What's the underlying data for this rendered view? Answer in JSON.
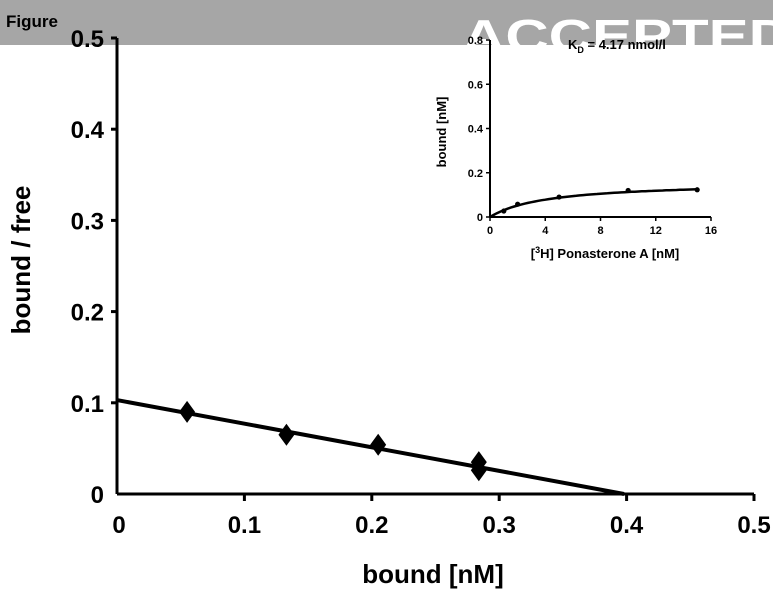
{
  "header": {
    "figure_label": "Figure",
    "watermark": "ACCEPTED",
    "band_color": "#a6a6a6"
  },
  "chart_data": [
    {
      "type": "scatter",
      "xlabel": "bound [nM]",
      "ylabel": "bound / free",
      "xlim": [
        0,
        0.5
      ],
      "ylim": [
        0,
        0.5
      ],
      "x_ticks": [
        "0",
        "0.1",
        "0.2",
        "0.3",
        "0.4",
        "0.5"
      ],
      "y_ticks": [
        "0",
        "0.1",
        "0.2",
        "0.3",
        "0.4",
        "0.5"
      ],
      "grid": false,
      "marker": "diamond",
      "series": [
        {
          "x": [
            0.055,
            0.133,
            0.205,
            0.284,
            0.284
          ],
          "y": [
            0.09,
            0.065,
            0.054,
            0.035,
            0.026
          ]
        }
      ],
      "fit_line": {
        "x": [
          0,
          0.398
        ],
        "y": [
          0.103,
          0
        ]
      }
    },
    {
      "type": "line",
      "annotation": {
        "prefix": "K",
        "subscript": "D",
        "text": " = 4.17 nmol/l"
      },
      "xlabel": {
        "open": "[",
        "superscript": "3",
        "rest": "H] Ponasterone A [nM]"
      },
      "ylabel": "bound [nM]",
      "xlim": [
        0,
        16
      ],
      "ylim": [
        0,
        0.8
      ],
      "x_ticks": [
        "0",
        "4",
        "8",
        "12",
        "16"
      ],
      "y_ticks": [
        "0",
        "0.2",
        "0.4",
        "0.6",
        "0.8"
      ],
      "grid": false,
      "series": [
        {
          "x": [
            1,
            2,
            5,
            10,
            15
          ],
          "y": [
            0.027,
            0.058,
            0.09,
            0.12,
            0.123
          ]
        }
      ],
      "fit_curve": {
        "bmax": 0.16,
        "kd": 4.17
      }
    }
  ]
}
